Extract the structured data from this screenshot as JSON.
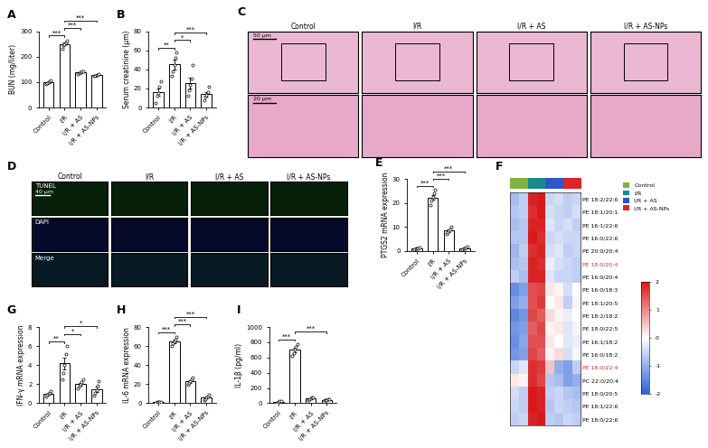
{
  "chart_data": [
    {
      "panel": "A",
      "type": "bar",
      "categories": [
        "Control",
        "I/R",
        "I/R + AS",
        "I/R + AS-NPs"
      ],
      "values": [
        100,
        250,
        138.2,
        127.8
      ],
      "errors": [
        2.4,
        5.6,
        1.8,
        1.3
      ],
      "points": [
        [
          93,
          97,
          100,
          103,
          107
        ],
        [
          232,
          245,
          250,
          258,
          265
        ],
        [
          133,
          136,
          138,
          141,
          143
        ],
        [
          124,
          126,
          128,
          130,
          131
        ]
      ],
      "ylabel": "BUN (mg/liter)",
      "ylim": [
        0,
        300
      ],
      "yticks": [
        0,
        100,
        200,
        300
      ],
      "significance": [
        {
          "pair": [
            0,
            1
          ],
          "label": "***"
        },
        {
          "pair": [
            1,
            2
          ],
          "label": "***"
        },
        {
          "pair": [
            1,
            3
          ],
          "label": "***"
        }
      ]
    },
    {
      "panel": "B",
      "type": "bar",
      "categories": [
        "Control",
        "I/R",
        "I/R + AS",
        "I/R + AS-NPs"
      ],
      "values": [
        16.4,
        45.2,
        25.8,
        14
      ],
      "errors": [
        4,
        5,
        6,
        2.5
      ],
      "points": [
        [
          5,
          12,
          15,
          22,
          28
        ],
        [
          33,
          38,
          45,
          52,
          58
        ],
        [
          12,
          18,
          24,
          30,
          45
        ],
        [
          8,
          11,
          13,
          16,
          22
        ]
      ],
      "ylabel": "Serum creatinine (μm)",
      "ylim": [
        0,
        80
      ],
      "yticks": [
        0,
        20,
        40,
        60,
        80
      ],
      "significance": [
        {
          "pair": [
            0,
            1
          ],
          "label": "**"
        },
        {
          "pair": [
            1,
            2
          ],
          "label": "*"
        },
        {
          "pair": [
            1,
            3
          ],
          "label": "***"
        }
      ]
    },
    {
      "panel": "E",
      "type": "bar",
      "categories": [
        "Control",
        "I/R",
        "I/R + AS",
        "I/R + AS-NPs"
      ],
      "values": [
        0.98,
        22.4,
        8.5,
        1.22
      ],
      "errors": [
        0.1,
        1.1,
        0.5,
        0.2
      ],
      "points": [
        [
          0.6,
          0.9,
          1,
          1.1,
          1.3
        ],
        [
          19,
          21,
          22.5,
          24,
          25.5
        ],
        [
          7,
          8,
          8.5,
          9,
          10
        ],
        [
          0.6,
          1,
          1.2,
          1.5,
          1.8
        ]
      ],
      "ylabel": "PTGS2 mRNA expression",
      "ylim": [
        0,
        30
      ],
      "yticks": [
        0,
        10,
        20,
        30
      ],
      "significance": [
        {
          "pair": [
            0,
            1
          ],
          "label": "***"
        },
        {
          "pair": [
            1,
            2
          ],
          "label": "***"
        },
        {
          "pair": [
            1,
            3
          ],
          "label": "***"
        }
      ]
    },
    {
      "panel": "G",
      "type": "bar",
      "categories": [
        "Control",
        "I/R",
        "I/R + AS",
        "I/R + AS-NPs"
      ],
      "values": [
        1.0,
        4.18,
        2.02,
        1.48
      ],
      "errors": [
        0.1,
        0.6,
        0.15,
        0.27
      ],
      "points": [
        [
          0.7,
          0.9,
          1.0,
          1.1,
          1.3
        ],
        [
          2.5,
          3.2,
          4.0,
          5.2,
          6.0
        ],
        [
          1.6,
          1.8,
          2.0,
          2.2,
          2.5
        ],
        [
          0.8,
          1.1,
          1.4,
          1.8,
          2.3
        ]
      ],
      "ylabel": "IFN-γ mRNA expression",
      "ylim": [
        0,
        8
      ],
      "yticks": [
        0,
        2,
        4,
        6,
        8
      ],
      "significance": [
        {
          "pair": [
            0,
            1
          ],
          "label": "**"
        },
        {
          "pair": [
            1,
            2
          ],
          "label": "*"
        },
        {
          "pair": [
            1,
            3
          ],
          "label": "*"
        }
      ]
    },
    {
      "panel": "H",
      "type": "bar",
      "categories": [
        "Control",
        "I/R",
        "I/R + AS",
        "I/R + AS-NPs"
      ],
      "values": [
        1.02,
        65,
        23,
        5.8
      ],
      "errors": [
        0.07,
        1.7,
        1.4,
        1
      ],
      "points": [
        [
          0.8,
          1,
          1,
          1.1,
          1.2
        ],
        [
          60,
          63,
          65,
          67,
          70
        ],
        [
          19,
          21,
          23,
          25,
          27
        ],
        [
          3,
          4.5,
          6,
          7,
          8.5
        ]
      ],
      "ylabel": "IL-6 mRNA expression",
      "ylim": [
        0,
        80
      ],
      "yticks": [
        0,
        20,
        40,
        60,
        80
      ],
      "significance": [
        {
          "pair": [
            0,
            1
          ],
          "label": "***"
        },
        {
          "pair": [
            1,
            2
          ],
          "label": "***"
        },
        {
          "pair": [
            1,
            3
          ],
          "label": "***"
        }
      ]
    },
    {
      "panel": "I",
      "type": "bar",
      "categories": [
        "Control",
        "I/R",
        "I/R + AS",
        "I/R + AS-NPs"
      ],
      "values": [
        17,
        700,
        60,
        45
      ],
      "errors": [
        4.6,
        28,
        7,
        3.5
      ],
      "points": [
        [
          5,
          10,
          15,
          25,
          30
        ],
        [
          620,
          660,
          700,
          740,
          780
        ],
        [
          40,
          50,
          60,
          70,
          80
        ],
        [
          35,
          40,
          45,
          50,
          55
        ]
      ],
      "ylabel": "IL-1β (pg/ml)",
      "ylim": [
        0,
        1000
      ],
      "yticks": [
        0,
        200,
        400,
        600,
        800,
        1000
      ],
      "significance": [
        {
          "pair": [
            0,
            1
          ],
          "label": "***"
        },
        {
          "pair": [
            1,
            3
          ],
          "label": "***"
        }
      ]
    },
    {
      "panel": "F",
      "type": "heatmap",
      "rows": [
        {
          "label": "PE 18:2/22:6"
        },
        {
          "label": "PE 18:1/20:1"
        },
        {
          "label": "PE 16:1/22:6"
        },
        {
          "label": "PE 16:0/22:6"
        },
        {
          "label": "PE 20:0/20:4"
        },
        {
          "label": "PE 18:0/20:4",
          "color": "#e0242a"
        },
        {
          "label": "PE 16:0/20:4"
        },
        {
          "label": "PE 16:0/18:3"
        },
        {
          "label": "PE 18:1/20:5"
        },
        {
          "label": "PE 18:2/18:2"
        },
        {
          "label": "PE 18:0/22:5"
        },
        {
          "label": "PE 16:1/18:2"
        },
        {
          "label": "PE 16:0/18:2"
        },
        {
          "label": "PE 18:0/22:4",
          "color": "#e0242a"
        },
        {
          "label": "PC 22:0/20:4"
        },
        {
          "label": "PE 18:0/20:5"
        },
        {
          "label": "PE 18:1/22:6"
        },
        {
          "label": "PE 18:0/22:6"
        }
      ],
      "column_groups": [
        "Control",
        "Control",
        "I/R",
        "I/R",
        "I/R + AS",
        "I/R + AS",
        "I/R + AS-NPs",
        "I/R + AS-NPs"
      ],
      "series": [
        {
          "name": "Control",
          "color": "#7fb23f"
        },
        {
          "name": "I/R",
          "color": "#1b8a8a"
        },
        {
          "name": "I/R + AS",
          "color": "#2f55c8"
        },
        {
          "name": "I/R + AS-NPs",
          "color": "#e0242a"
        }
      ],
      "cells": [
        [
          -0.8,
          -0.6,
          1.9,
          2.0,
          -0.5,
          -0.4,
          -0.6,
          -0.5
        ],
        [
          -0.7,
          -0.6,
          1.8,
          2.0,
          -0.4,
          -0.5,
          -0.6,
          -0.4
        ],
        [
          -0.8,
          -0.7,
          1.9,
          1.9,
          -0.3,
          -0.5,
          -0.4,
          -0.6
        ],
        [
          -0.7,
          -0.7,
          2.0,
          1.8,
          -0.5,
          -0.4,
          -0.5,
          -0.5
        ],
        [
          -0.9,
          -0.6,
          1.8,
          1.9,
          -0.4,
          -0.3,
          -0.6,
          -0.5
        ],
        [
          -0.8,
          -0.7,
          1.9,
          1.8,
          -0.2,
          -0.4,
          -0.5,
          -0.6
        ],
        [
          -0.6,
          -0.8,
          1.9,
          1.9,
          -0.3,
          -0.5,
          -0.5,
          -0.6
        ],
        [
          -1.4,
          -1.2,
          1.5,
          1.6,
          0.2,
          0.1,
          -0.4,
          0.0
        ],
        [
          -1.2,
          -1.0,
          1.5,
          1.7,
          0.0,
          0.2,
          -0.6,
          -0.1
        ],
        [
          -1.5,
          -1.3,
          1.6,
          1.4,
          0.3,
          0.1,
          -0.2,
          0.0
        ],
        [
          -1.3,
          -1.2,
          1.4,
          1.6,
          0.1,
          0.2,
          -0.3,
          -0.1
        ],
        [
          -1.4,
          -1.1,
          1.5,
          1.5,
          0.2,
          0.0,
          -0.3,
          -0.2
        ],
        [
          -1.3,
          -1.2,
          1.6,
          1.4,
          0.1,
          0.3,
          -0.4,
          -0.1
        ],
        [
          -0.5,
          -0.3,
          1.8,
          1.7,
          0.5,
          -1.0,
          -1.2,
          -0.6
        ],
        [
          0.2,
          0.1,
          1.8,
          1.6,
          -0.7,
          -0.8,
          -1.2,
          -1.0
        ],
        [
          -0.4,
          -0.6,
          2.0,
          1.9,
          -0.6,
          -0.5,
          -0.7,
          -0.8
        ],
        [
          -0.5,
          -0.6,
          2.0,
          1.9,
          -0.7,
          -0.5,
          -0.6,
          -0.7
        ],
        [
          -0.6,
          -0.5,
          1.9,
          2.0,
          -0.6,
          -0.7,
          -0.5,
          -0.6
        ]
      ],
      "colorbar": {
        "range": [
          -2,
          2
        ],
        "ticks": [
          -2,
          -1,
          0,
          1,
          2
        ]
      }
    }
  ],
  "images": [
    {
      "panel": "C",
      "columns": [
        "Control",
        "I/R",
        "I/R + AS",
        "I/R + AS-NPs"
      ],
      "scale_bars": [
        "50 μm",
        "20 μm"
      ]
    },
    {
      "panel": "D",
      "columns": [
        "Control",
        "I/R",
        "I/R + AS",
        "I/R + AS-NPs"
      ],
      "rows": [
        "TUNEL",
        "DAPI",
        "Merge"
      ],
      "scale_bar": "40 μm"
    }
  ]
}
